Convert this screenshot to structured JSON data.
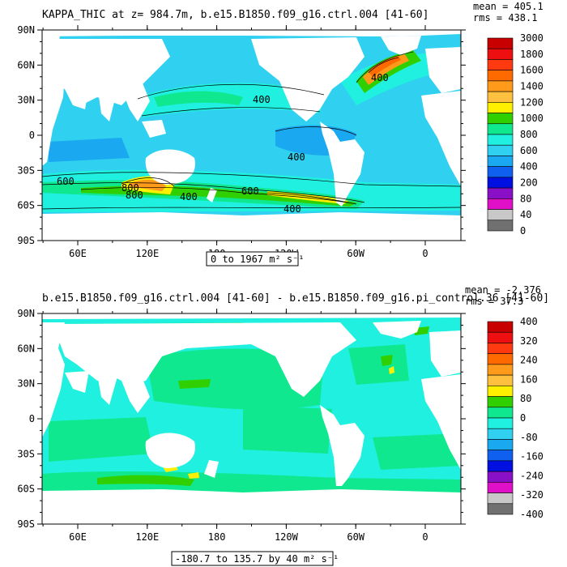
{
  "chart_data": [
    {
      "type": "heatmap",
      "title": "KAPPA_THIC at z= 984.7m, b.e15.B1850.f09_g16.ctrl.004 [41-60]",
      "stats": {
        "mean": "mean = 405.1",
        "rms": "rms = 438.1"
      },
      "range_label": "0 to 1967 m² s⁻¹",
      "x_ticks": [
        "60E",
        "120E",
        "180",
        "120W",
        "60W",
        "0"
      ],
      "y_ticks": [
        "90N",
        "60N",
        "30N",
        "0",
        "30S",
        "60S",
        "90S"
      ],
      "contour_labels": [
        "400",
        "400",
        "400",
        "600",
        "800",
        "800",
        "400",
        "600",
        "400"
      ],
      "colorbar": {
        "labels": [
          "3000",
          "1800",
          "1600",
          "1400",
          "1200",
          "1000",
          "800",
          "600",
          "400",
          "200",
          "80",
          "40",
          "0"
        ],
        "colors": [
          "#c80000",
          "#ee1010",
          "#ff3a10",
          "#ff6a00",
          "#ff9a1a",
          "#ffc040",
          "#fff000",
          "#30d000",
          "#10e890",
          "#20f0e0",
          "#30d0f0",
          "#1aa8f0",
          "#1060f0",
          "#0010e0",
          "#8a10c8",
          "#e010c8",
          "#c8c8c8",
          "#707070"
        ]
      },
      "field": {
        "ocean": "#30d0f0",
        "land": "#ffffff",
        "bands": [
          {
            "value": 200,
            "color": "#1aa8f0"
          },
          {
            "value": 400,
            "color": "#20f0e0"
          },
          {
            "value": 600,
            "color": "#10e890"
          },
          {
            "value": 800,
            "color": "#30d000"
          },
          {
            "value": 1000,
            "color": "#fff000"
          },
          {
            "value": 1400,
            "color": "#ff9a1a"
          },
          {
            "value": 1600,
            "color": "#ff6a00"
          }
        ]
      }
    },
    {
      "type": "heatmap",
      "title": "b.e15.B1850.f09_g16.ctrl.004 [41-60] - b.e15.B1850.f09_g16.pi_control.36 [41-60]",
      "stats": {
        "mean": "mean = -2.376",
        "rms": "rms = 37.3"
      },
      "range_label": "-180.7 to 135.7 by 40 m² s⁻¹",
      "x_ticks": [
        "60E",
        "120E",
        "180",
        "120W",
        "60W",
        "0"
      ],
      "y_ticks": [
        "90N",
        "60N",
        "30N",
        "0",
        "30S",
        "60S",
        "90S"
      ],
      "colorbar": {
        "labels": [
          "400",
          "320",
          "240",
          "160",
          "80",
          "0",
          "-80",
          "-160",
          "-240",
          "-320",
          "-400"
        ],
        "colors": [
          "#c80000",
          "#ee1010",
          "#ff3a10",
          "#ff6a00",
          "#ff9a1a",
          "#ffc040",
          "#fff000",
          "#30d000",
          "#10e890",
          "#20f0e0",
          "#30d0f0",
          "#1aa8f0",
          "#1060f0",
          "#0010e0",
          "#8a10c8",
          "#e010c8",
          "#c8c8c8",
          "#707070"
        ]
      },
      "field": {
        "ocean": "#20f0e0",
        "land": "#ffffff",
        "bands": [
          {
            "value": 0,
            "color": "#10e890"
          },
          {
            "value": 40,
            "color": "#30d000"
          },
          {
            "value": 80,
            "color": "#fff000"
          }
        ]
      }
    }
  ]
}
